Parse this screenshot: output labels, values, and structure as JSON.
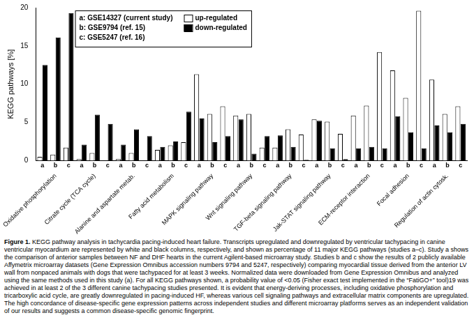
{
  "chart_data": {
    "type": "bar",
    "y_label": "KEGG pathways [%]",
    "categories": [
      "a",
      "b",
      "c",
      "a",
      "b",
      "c",
      "a",
      "b",
      "c",
      "a",
      "b",
      "c",
      "a",
      "b",
      "c",
      "a",
      "b",
      "c",
      "a",
      "b",
      "c",
      "a",
      "b",
      "c",
      "a",
      "b",
      "c",
      "a",
      "b",
      "c",
      "a",
      "b",
      "c"
    ],
    "category_groups": [
      "Oxidative phosphorylation",
      "Citrate cycle (TCA cycle)",
      "Alanine and aspartate metab.",
      "Fatty acid metabolism",
      "MAPK signaling pathway",
      "Wnt signaling pathway",
      "TGF-beta signaling pathway",
      "Jak-STAT signaling pathway",
      "ECM-receptor interaction",
      "Focal adhesion",
      "Regulation of actin cytosk."
    ],
    "series": [
      {
        "name": "up-regulated",
        "color": "#ffffff",
        "values": [
          0.5,
          0.8,
          1.7,
          0.2,
          1.0,
          0,
          0.2,
          1.0,
          0,
          1.4,
          2.0,
          2.4,
          11.3,
          6.1,
          7.1,
          5.9,
          6.1,
          1.7,
          1.7,
          4.1,
          3.4,
          5.4,
          5.1,
          3.5,
          5.9,
          7.2,
          14.2,
          11.8,
          8.2,
          19.6,
          10.6,
          6.1,
          7.1
        ]
      },
      {
        "name": "down-regulated",
        "color": "#000000",
        "values": [
          12.5,
          16.1,
          19.3,
          2.1,
          6.0,
          4.8,
          2.1,
          4.1,
          3.2,
          1.8,
          2.5,
          6.4,
          5.5,
          2.4,
          3.2,
          5.4,
          0.9,
          3.2,
          3.3,
          1.8,
          0.1,
          5.2,
          1.6,
          0.2,
          1.6,
          1.8,
          1.6,
          5.8,
          3.7,
          1.6,
          4.6,
          3.7,
          4.8
        ]
      }
    ],
    "legend_notes": [
      "a: GSE14327 (current study)",
      "b: GSE9794 (ref. 15)",
      "c: GSE5247 (ref. 16)"
    ],
    "ylim": [
      0,
      20
    ],
    "yticks": [
      0,
      5,
      10,
      15,
      20
    ],
    "grid": false,
    "legend": "top"
  },
  "caption": {
    "label": "Figure 1.",
    "text": "KEGG pathway analysis in tachycardia pacing-induced heart failure. Transcripts upregulated and downregulated by ventricular tachypacing in canine ventricular myocardium are represented by white and black columns, respectively, and shown as percentage of 11 major KEGG pathways (studies a–c). Study a shows the comparison of anterior samples between NF and DHF hearts in the current Agilent-based microarray study. Studies b and c show the results of 2 publicly available Affymetrix microarray datasets (Gene Expression Omnibus accession numbers 9794 and 5247, respectively) comparing myocardial tissue derived from the anterior LV wall from nonpaced animals with dogs that were tachypaced for at least 3 weeks. Normalized data were downloaded from Gene Expression Omnibus and analyzed using the same methods used in this study (a). For all KEGG pathways shown, a probability value of <0.05 (Fisher exact test implemented in the “FatiGO+” tool)19 was achieved in at least 2 of the 3 different canine tachypacing studies presented. It is evident that energy-deriving processes, including oxidative phosphorylation and tricarboxylic acid cycle, are greatly downregulated in pacing-induced HF, whereas various cell signaling pathways and extracellular matrix components are upregulated. The high concordance of disease-specific gene expression patterns across independent studies and different microarray platforms serves as an independent validation of our results and suggests a common disease-specific genomic fingerprint."
  }
}
